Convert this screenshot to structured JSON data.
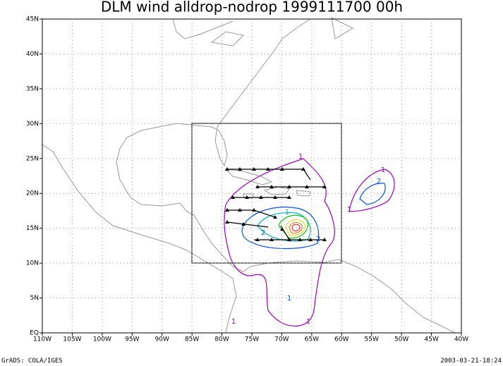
{
  "map": {
    "title": "DLM wind alldrop-nodrop 1999111700 00h",
    "lon_labels": [
      "110W",
      "105W",
      "100W",
      "95W",
      "90W",
      "85W",
      "80W",
      "75W",
      "70W",
      "65W",
      "60W",
      "55W",
      "50W",
      "45W",
      "40W"
    ],
    "lat_labels": [
      "EQ",
      "5N",
      "10N",
      "15N",
      "20N",
      "25N",
      "30N",
      "35N",
      "40N",
      "45N"
    ],
    "contour_labels": [
      "1",
      "1",
      "2",
      "1",
      "2",
      "2",
      "1",
      "1",
      "1",
      "1"
    ],
    "footer_left": "GrADS: COLA/IGES",
    "footer_right": "2003-03-21-18:24"
  }
}
